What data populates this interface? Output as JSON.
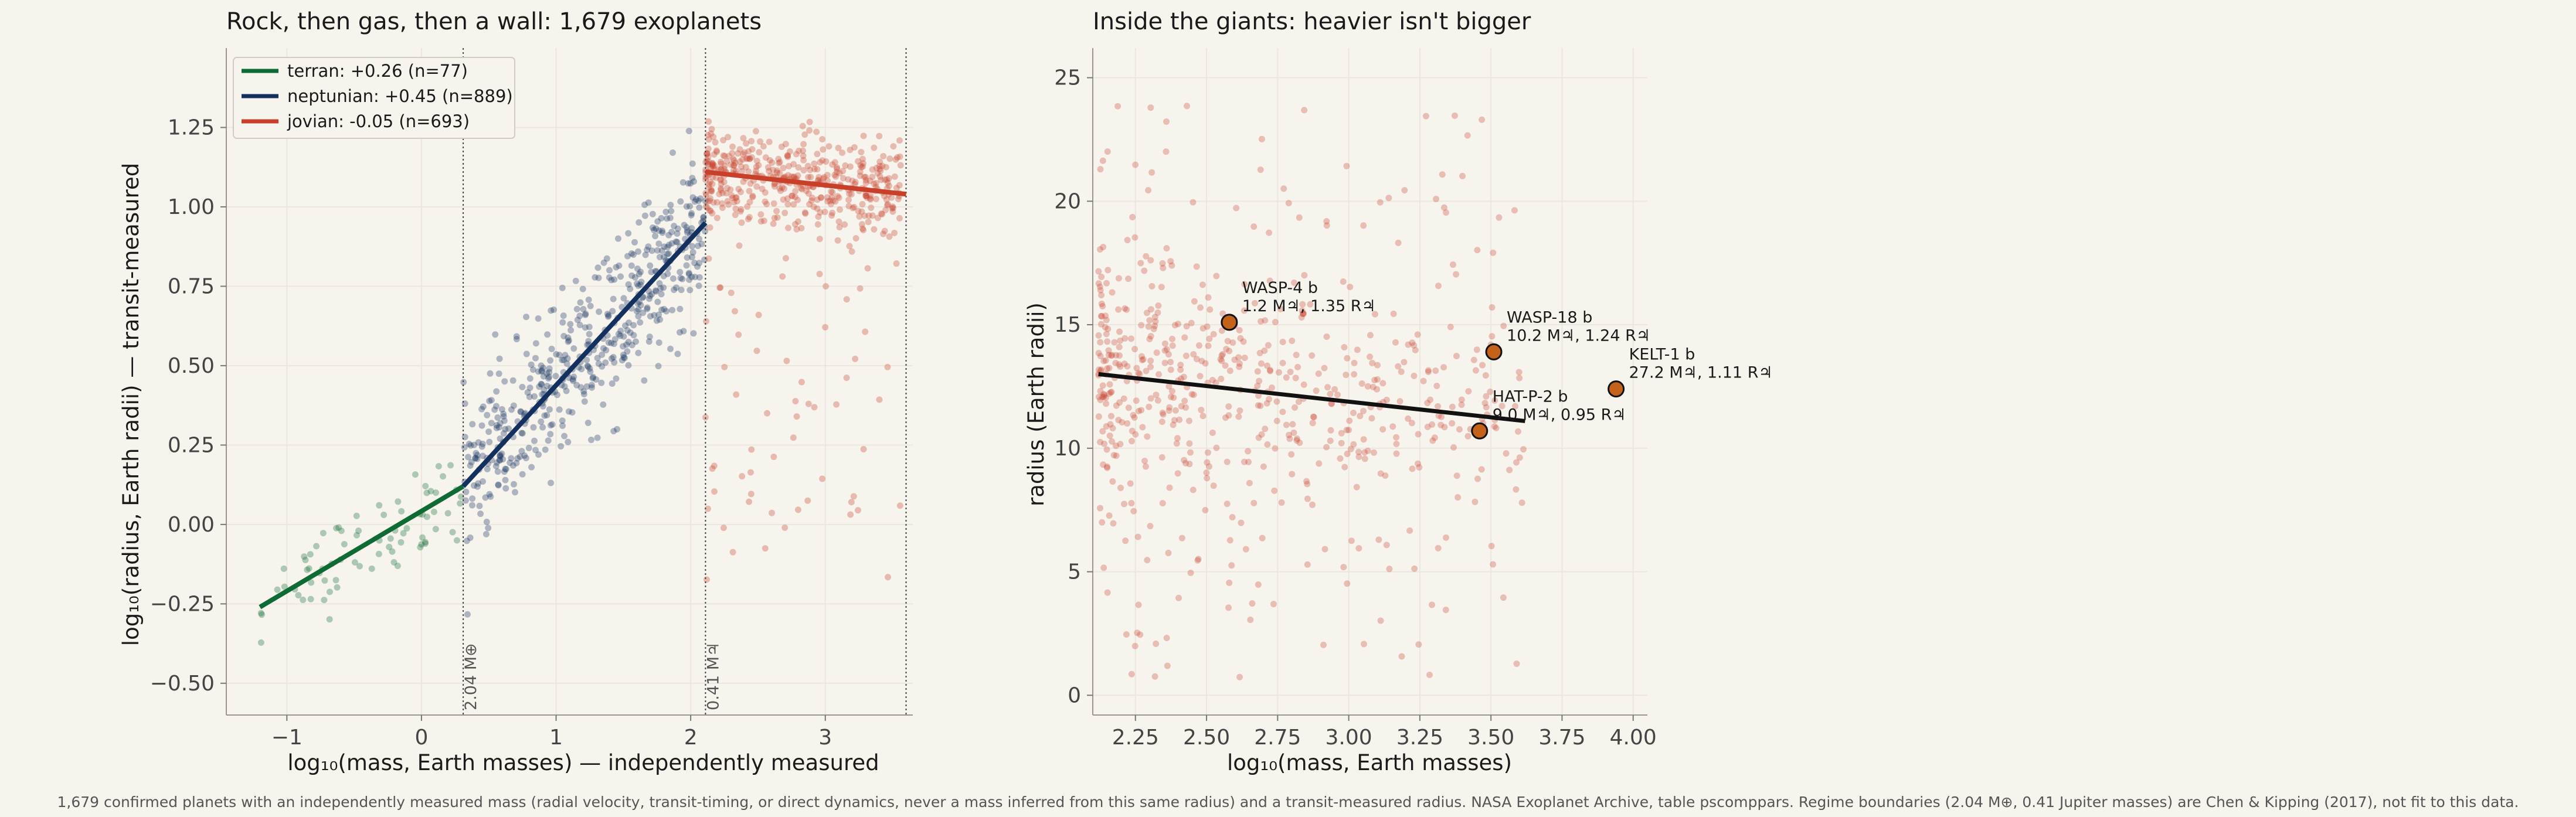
{
  "footnote": "1,679 confirmed planets with an independently measured mass (radial velocity, transit-timing, or direct dynamics, never a mass inferred from this same radius) and a transit-measured radius. NASA Exoplanet Archive, table pscomppars. Regime boundaries (2.04 M⊕, 0.41 Jupiter masses) are Chen & Kipping (2017), not fit to this data.",
  "colors": {
    "terran": "#0f6b35",
    "neptunian": "#13305e",
    "jovian": "#c8402a",
    "highlight": "#c4621a",
    "background": "#f7f4ee"
  },
  "chart_data": [
    {
      "type": "scatter",
      "title": "Rock, then gas, then a wall: 1,679 exoplanets",
      "xlabel": "log₁₀(mass, Earth masses) — independently measured",
      "ylabel": "log₁₀(radius, Earth radii) — transit-measured",
      "xlim": [
        -1.45,
        3.65
      ],
      "ylim": [
        -0.6,
        1.5
      ],
      "xticks": [
        -1,
        0,
        1,
        2,
        3
      ],
      "xtick_labels": [
        "−1",
        "0",
        "1",
        "2",
        "3"
      ],
      "yticks": [
        -0.5,
        -0.25,
        0.0,
        0.25,
        0.5,
        0.75,
        1.0,
        1.25
      ],
      "ytick_labels": [
        "−0.50",
        "−0.25",
        "0.00",
        "0.25",
        "0.50",
        "0.75",
        "1.00",
        "1.25"
      ],
      "grid": true,
      "legend_position": "top-left",
      "boundaries": [
        {
          "x": 0.31,
          "label": "2.04 M⊕"
        },
        {
          "x": 2.11,
          "label": "0.41 M♃"
        },
        {
          "x": 3.6,
          "label": ""
        }
      ],
      "series": [
        {
          "name": "terran: +0.26 (n=77)",
          "key": "terran",
          "n": 77,
          "x_range": [
            -1.3,
            0.31
          ],
          "fit": {
            "x": [
              -1.2,
              0.31
            ],
            "y": [
              -0.26,
              0.12
            ]
          }
        },
        {
          "name": "neptunian: +0.45 (n=889)",
          "key": "neptunian",
          "n": 889,
          "x_range": [
            0.31,
            2.11
          ],
          "fit": {
            "x": [
              0.31,
              2.11
            ],
            "y": [
              0.12,
              0.95
            ]
          }
        },
        {
          "name": "jovian: -0.05 (n=693)",
          "key": "jovian",
          "n": 693,
          "x_range": [
            2.11,
            3.6
          ],
          "fit": {
            "x": [
              2.11,
              3.6
            ],
            "y": [
              1.11,
              1.04
            ]
          }
        }
      ]
    },
    {
      "type": "scatter",
      "title": "Inside the giants: heavier isn't bigger",
      "xlabel": "log₁₀(mass, Earth masses)",
      "ylabel": "radius (Earth radii)",
      "xlim": [
        2.1,
        4.05
      ],
      "ylim": [
        -0.8,
        26.2
      ],
      "xticks": [
        2.25,
        2.5,
        2.75,
        3.0,
        3.25,
        3.5,
        3.75,
        4.0
      ],
      "xtick_labels": [
        "2.25",
        "2.50",
        "2.75",
        "3.00",
        "3.25",
        "3.50",
        "3.75",
        "4.00"
      ],
      "yticks": [
        0,
        5,
        10,
        15,
        20,
        25
      ],
      "ytick_labels": [
        "0",
        "5",
        "10",
        "15",
        "20",
        "25"
      ],
      "grid": true,
      "fit": {
        "x": [
          2.12,
          3.62
        ],
        "y": [
          13.0,
          11.1
        ]
      },
      "highlights": [
        {
          "name": "WASP-4 b",
          "detail": "1.2 M♃, 1.35 R♃",
          "x": 2.58,
          "y": 15.1
        },
        {
          "name": "WASP-18 b",
          "detail": "10.2 M♃, 1.24 R♃",
          "x": 3.51,
          "y": 13.9
        },
        {
          "name": "KELT-1 b",
          "detail": "27.2 M♃, 1.11 R♃",
          "x": 3.94,
          "y": 12.4
        },
        {
          "name": "HAT-P-2 b",
          "detail": "9.0 M♃, 0.95 R♃",
          "x": 3.46,
          "y": 10.7
        }
      ]
    }
  ]
}
